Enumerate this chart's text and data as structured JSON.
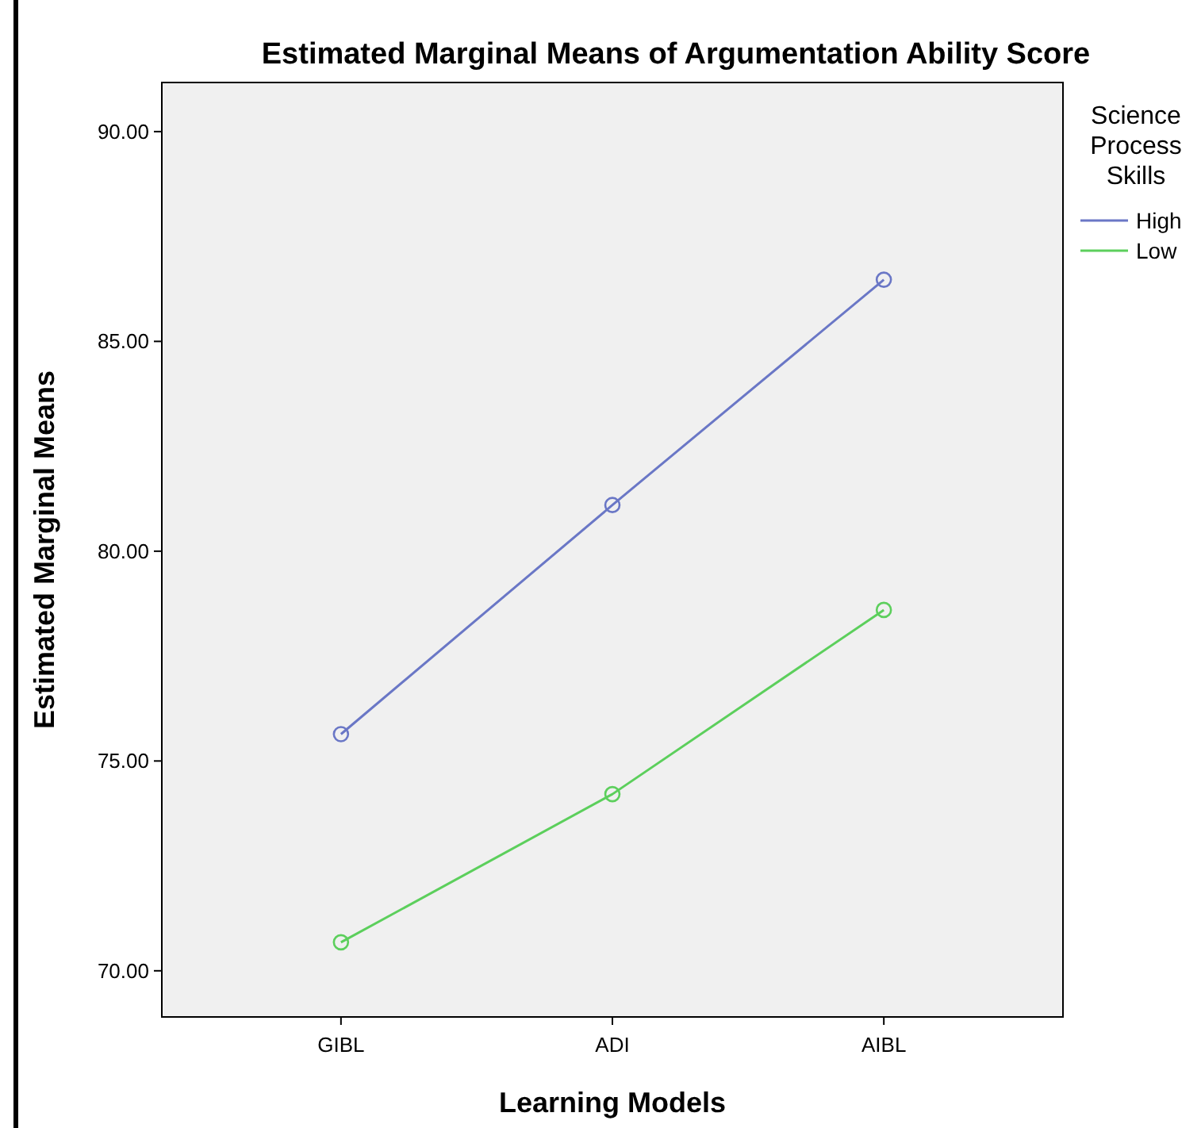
{
  "chart_data": {
    "type": "line",
    "title": "Estimated Marginal Means of Argumentation Ability Score",
    "xlabel": "Learning Models",
    "ylabel": "Estimated Marginal Means",
    "legend_title": "Science Process Skills",
    "categories": [
      "GIBL",
      "ADI",
      "AIBL"
    ],
    "series": [
      {
        "name": "High",
        "color": "#6a77c6",
        "values": [
          75.64,
          81.1,
          86.47
        ]
      },
      {
        "name": "Low",
        "color": "#5ccf5c",
        "values": [
          70.68,
          74.21,
          78.6
        ]
      }
    ],
    "ylim": [
      68.9,
      91.17
    ],
    "yticks": [
      {
        "value": 70,
        "label": "70.00"
      },
      {
        "value": 75,
        "label": "75.00"
      },
      {
        "value": 80,
        "label": "80.00"
      },
      {
        "value": 85,
        "label": "85.00"
      },
      {
        "value": 90,
        "label": "90.00"
      }
    ],
    "marker": "circle",
    "line_style": "solid",
    "grid": false,
    "legend": "top right"
  }
}
